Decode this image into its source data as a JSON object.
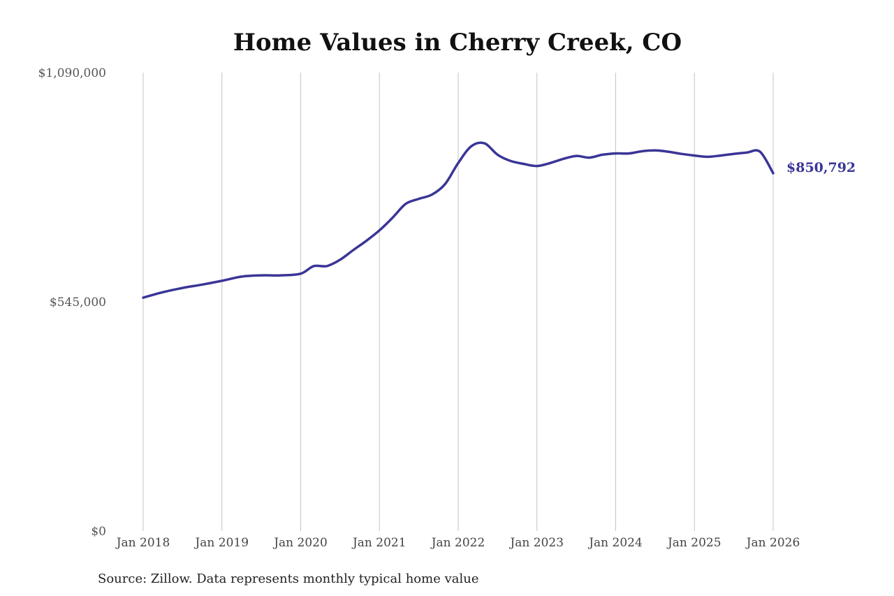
{
  "chart_data": {
    "type": "line",
    "title": "Home Values in Cherry Creek, CO",
    "source": "Source: Zillow. Data represents monthly typical home value",
    "y_ticks": [
      {
        "value": 1090000,
        "label": "$1,090,000"
      },
      {
        "value": 545000,
        "label": "$545,000"
      },
      {
        "value": 0,
        "label": "$0"
      }
    ],
    "ylim": [
      0,
      1090000
    ],
    "x_ticks": [
      {
        "value": "2018-01",
        "label": "Jan 2018"
      },
      {
        "value": "2019-01",
        "label": "Jan 2019"
      },
      {
        "value": "2020-01",
        "label": "Jan 2020"
      },
      {
        "value": "2021-01",
        "label": "Jan 2021"
      },
      {
        "value": "2022-01",
        "label": "Jan 2022"
      },
      {
        "value": "2023-01",
        "label": "Jan 2023"
      },
      {
        "value": "2024-01",
        "label": "Jan 2024"
      },
      {
        "value": "2025-01",
        "label": "Jan 2025"
      },
      {
        "value": "2026-01",
        "label": "Jan 2026"
      }
    ],
    "xlim": [
      "2018-01",
      "2026-01"
    ],
    "grid": "vertical",
    "line_color": "#3a3597",
    "end_label": "$850,792",
    "series": [
      {
        "x": [
          "2018-01",
          "2018-04",
          "2018-07",
          "2018-10",
          "2019-01",
          "2019-04",
          "2019-07",
          "2019-10",
          "2020-01",
          "2020-03",
          "2020-05",
          "2020-07",
          "2020-09",
          "2020-11",
          "2021-01",
          "2021-03",
          "2021-05",
          "2021-07",
          "2021-09",
          "2021-11",
          "2022-01",
          "2022-03",
          "2022-05",
          "2022-07",
          "2022-09",
          "2022-11",
          "2023-01",
          "2023-03",
          "2023-05",
          "2023-07",
          "2023-09",
          "2023-11",
          "2024-01",
          "2024-03",
          "2024-05",
          "2024-07",
          "2024-09",
          "2024-11",
          "2025-01",
          "2025-03",
          "2025-05",
          "2025-07",
          "2025-09",
          "2025-11",
          "2026-01"
        ],
        "values": [
          555000,
          568000,
          578000,
          586000,
          595000,
          605000,
          608000,
          608000,
          612000,
          630000,
          630000,
          645000,
          668000,
          690000,
          715000,
          745000,
          778000,
          790000,
          800000,
          825000,
          875000,
          915000,
          922000,
          895000,
          880000,
          873000,
          868000,
          875000,
          885000,
          892000,
          888000,
          895000,
          898000,
          898000,
          903000,
          905000,
          902000,
          897000,
          893000,
          890000,
          893000,
          897000,
          900000,
          902000,
          850792
        ]
      }
    ]
  }
}
